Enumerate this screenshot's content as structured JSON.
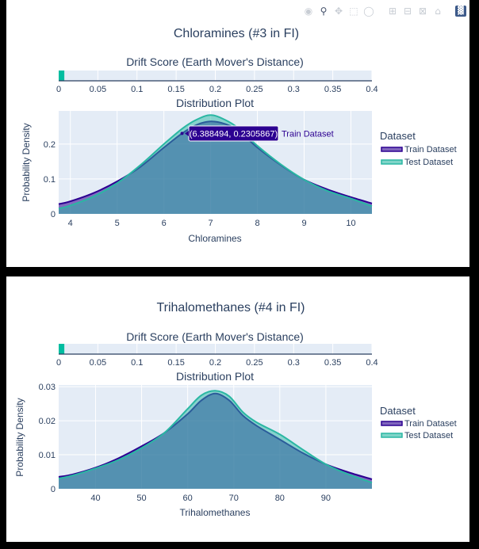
{
  "modebar": {
    "icons": [
      "camera-icon",
      "zoom-icon",
      "pan-icon",
      "box-select-icon",
      "lasso-icon",
      "zoom-in-icon",
      "zoom-out-icon",
      "autoscale-icon",
      "home-icon",
      "plotly-logo-icon"
    ]
  },
  "colors": {
    "train": "#2c0091",
    "test": "#2ab7a3",
    "plot_bg": "#e4ecf6",
    "drift_bar": "#00bda0",
    "title": "#2a3f5f"
  },
  "panels": [
    {
      "title": "Chloramines (#3 in FI)",
      "drift": {
        "title": "Drift Score (Earth Mover's Distance)",
        "value": 0.0072,
        "range": [
          0,
          0.4
        ],
        "ticks": [
          0,
          0.05,
          0.1,
          0.15,
          0.2,
          0.25,
          0.3,
          0.35,
          0.4
        ],
        "tick_labels": [
          "0",
          "0.05",
          "0.1",
          "0.15",
          "0.2",
          "0.25",
          "0.3",
          "0.35",
          "0.4"
        ]
      },
      "dist_title": "Distribution Plot",
      "xlabel": "Chloramines",
      "ylabel": "Probability Density",
      "legend_title": "Dataset",
      "hover_text": "(6.388494, 0.2305867)",
      "hover_series": "Train Dataset",
      "hover_point": {
        "x": 6.388494,
        "y": 0.2305867
      }
    },
    {
      "title": "Trihalomethanes (#4 in FI)",
      "drift": {
        "title": "Drift Score (Earth Mover's Distance)",
        "value": 0.0072,
        "range": [
          0,
          0.4
        ],
        "ticks": [
          0,
          0.05,
          0.1,
          0.15,
          0.2,
          0.25,
          0.3,
          0.35,
          0.4
        ],
        "tick_labels": [
          "0",
          "0.05",
          "0.1",
          "0.15",
          "0.2",
          "0.25",
          "0.3",
          "0.35",
          "0.4"
        ]
      },
      "dist_title": "Distribution Plot",
      "xlabel": "Trihalomethanes",
      "ylabel": "Probability Density",
      "legend_title": "Dataset"
    }
  ],
  "chart_data": [
    {
      "type": "area",
      "title": "Chloramines (#3 in FI)",
      "xlabel": "Chloramines",
      "ylabel": "Probability Density",
      "xlim": [
        3.75,
        10.45
      ],
      "ylim": [
        0,
        0.295
      ],
      "x_ticks": [
        4,
        5,
        6,
        7,
        8,
        9,
        10
      ],
      "y_ticks": [
        0,
        0.1,
        0.2
      ],
      "y_tick_labels": [
        "0",
        "0.1",
        "0.2"
      ],
      "legend": "right",
      "series": [
        {
          "name": "Train Dataset",
          "x": [
            3.75,
            4.0,
            4.5,
            5.0,
            5.5,
            6.0,
            6.388494,
            6.7,
            7.0,
            7.3,
            7.6,
            8.0,
            8.5,
            9.0,
            9.5,
            10.0,
            10.45
          ],
          "y": [
            0.028,
            0.036,
            0.06,
            0.093,
            0.135,
            0.19,
            0.2305867,
            0.255,
            0.265,
            0.258,
            0.238,
            0.19,
            0.14,
            0.098,
            0.07,
            0.048,
            0.03
          ]
        },
        {
          "name": "Test Dataset",
          "x": [
            3.75,
            4.0,
            4.5,
            5.0,
            5.5,
            6.0,
            6.4,
            6.7,
            7.0,
            7.3,
            7.6,
            8.0,
            8.5,
            9.0,
            9.5,
            10.0,
            10.45
          ],
          "y": [
            0.015,
            0.024,
            0.05,
            0.088,
            0.14,
            0.2,
            0.245,
            0.27,
            0.283,
            0.27,
            0.245,
            0.195,
            0.142,
            0.098,
            0.066,
            0.044,
            0.022
          ]
        }
      ]
    },
    {
      "type": "area",
      "title": "Trihalomethanes (#4 in FI)",
      "xlabel": "Trihalomethanes",
      "ylabel": "Probability Density",
      "xlim": [
        32,
        100
      ],
      "ylim": [
        0,
        0.0305
      ],
      "x_ticks": [
        40,
        50,
        60,
        70,
        80,
        90
      ],
      "y_ticks": [
        0,
        0.01,
        0.02,
        0.03
      ],
      "y_tick_labels": [
        "0",
        "0.01",
        "0.02",
        "0.03"
      ],
      "legend": "right",
      "series": [
        {
          "name": "Train Dataset",
          "x": [
            32,
            35,
            40,
            45,
            50,
            55,
            60,
            63,
            66,
            69,
            72,
            75,
            80,
            85,
            90,
            95,
            100
          ],
          "y": [
            0.0035,
            0.0042,
            0.0062,
            0.009,
            0.0125,
            0.0165,
            0.022,
            0.026,
            0.028,
            0.026,
            0.0215,
            0.0185,
            0.0145,
            0.0105,
            0.0072,
            0.0048,
            0.0028
          ]
        },
        {
          "name": "Test Dataset",
          "x": [
            32,
            35,
            40,
            45,
            50,
            55,
            60,
            63,
            66,
            69,
            72,
            75,
            80,
            85,
            90,
            95,
            100
          ],
          "y": [
            0.003,
            0.0039,
            0.006,
            0.0085,
            0.012,
            0.0165,
            0.0235,
            0.0275,
            0.0288,
            0.0272,
            0.0225,
            0.0195,
            0.016,
            0.0115,
            0.0072,
            0.0042,
            0.0018
          ]
        }
      ]
    }
  ]
}
